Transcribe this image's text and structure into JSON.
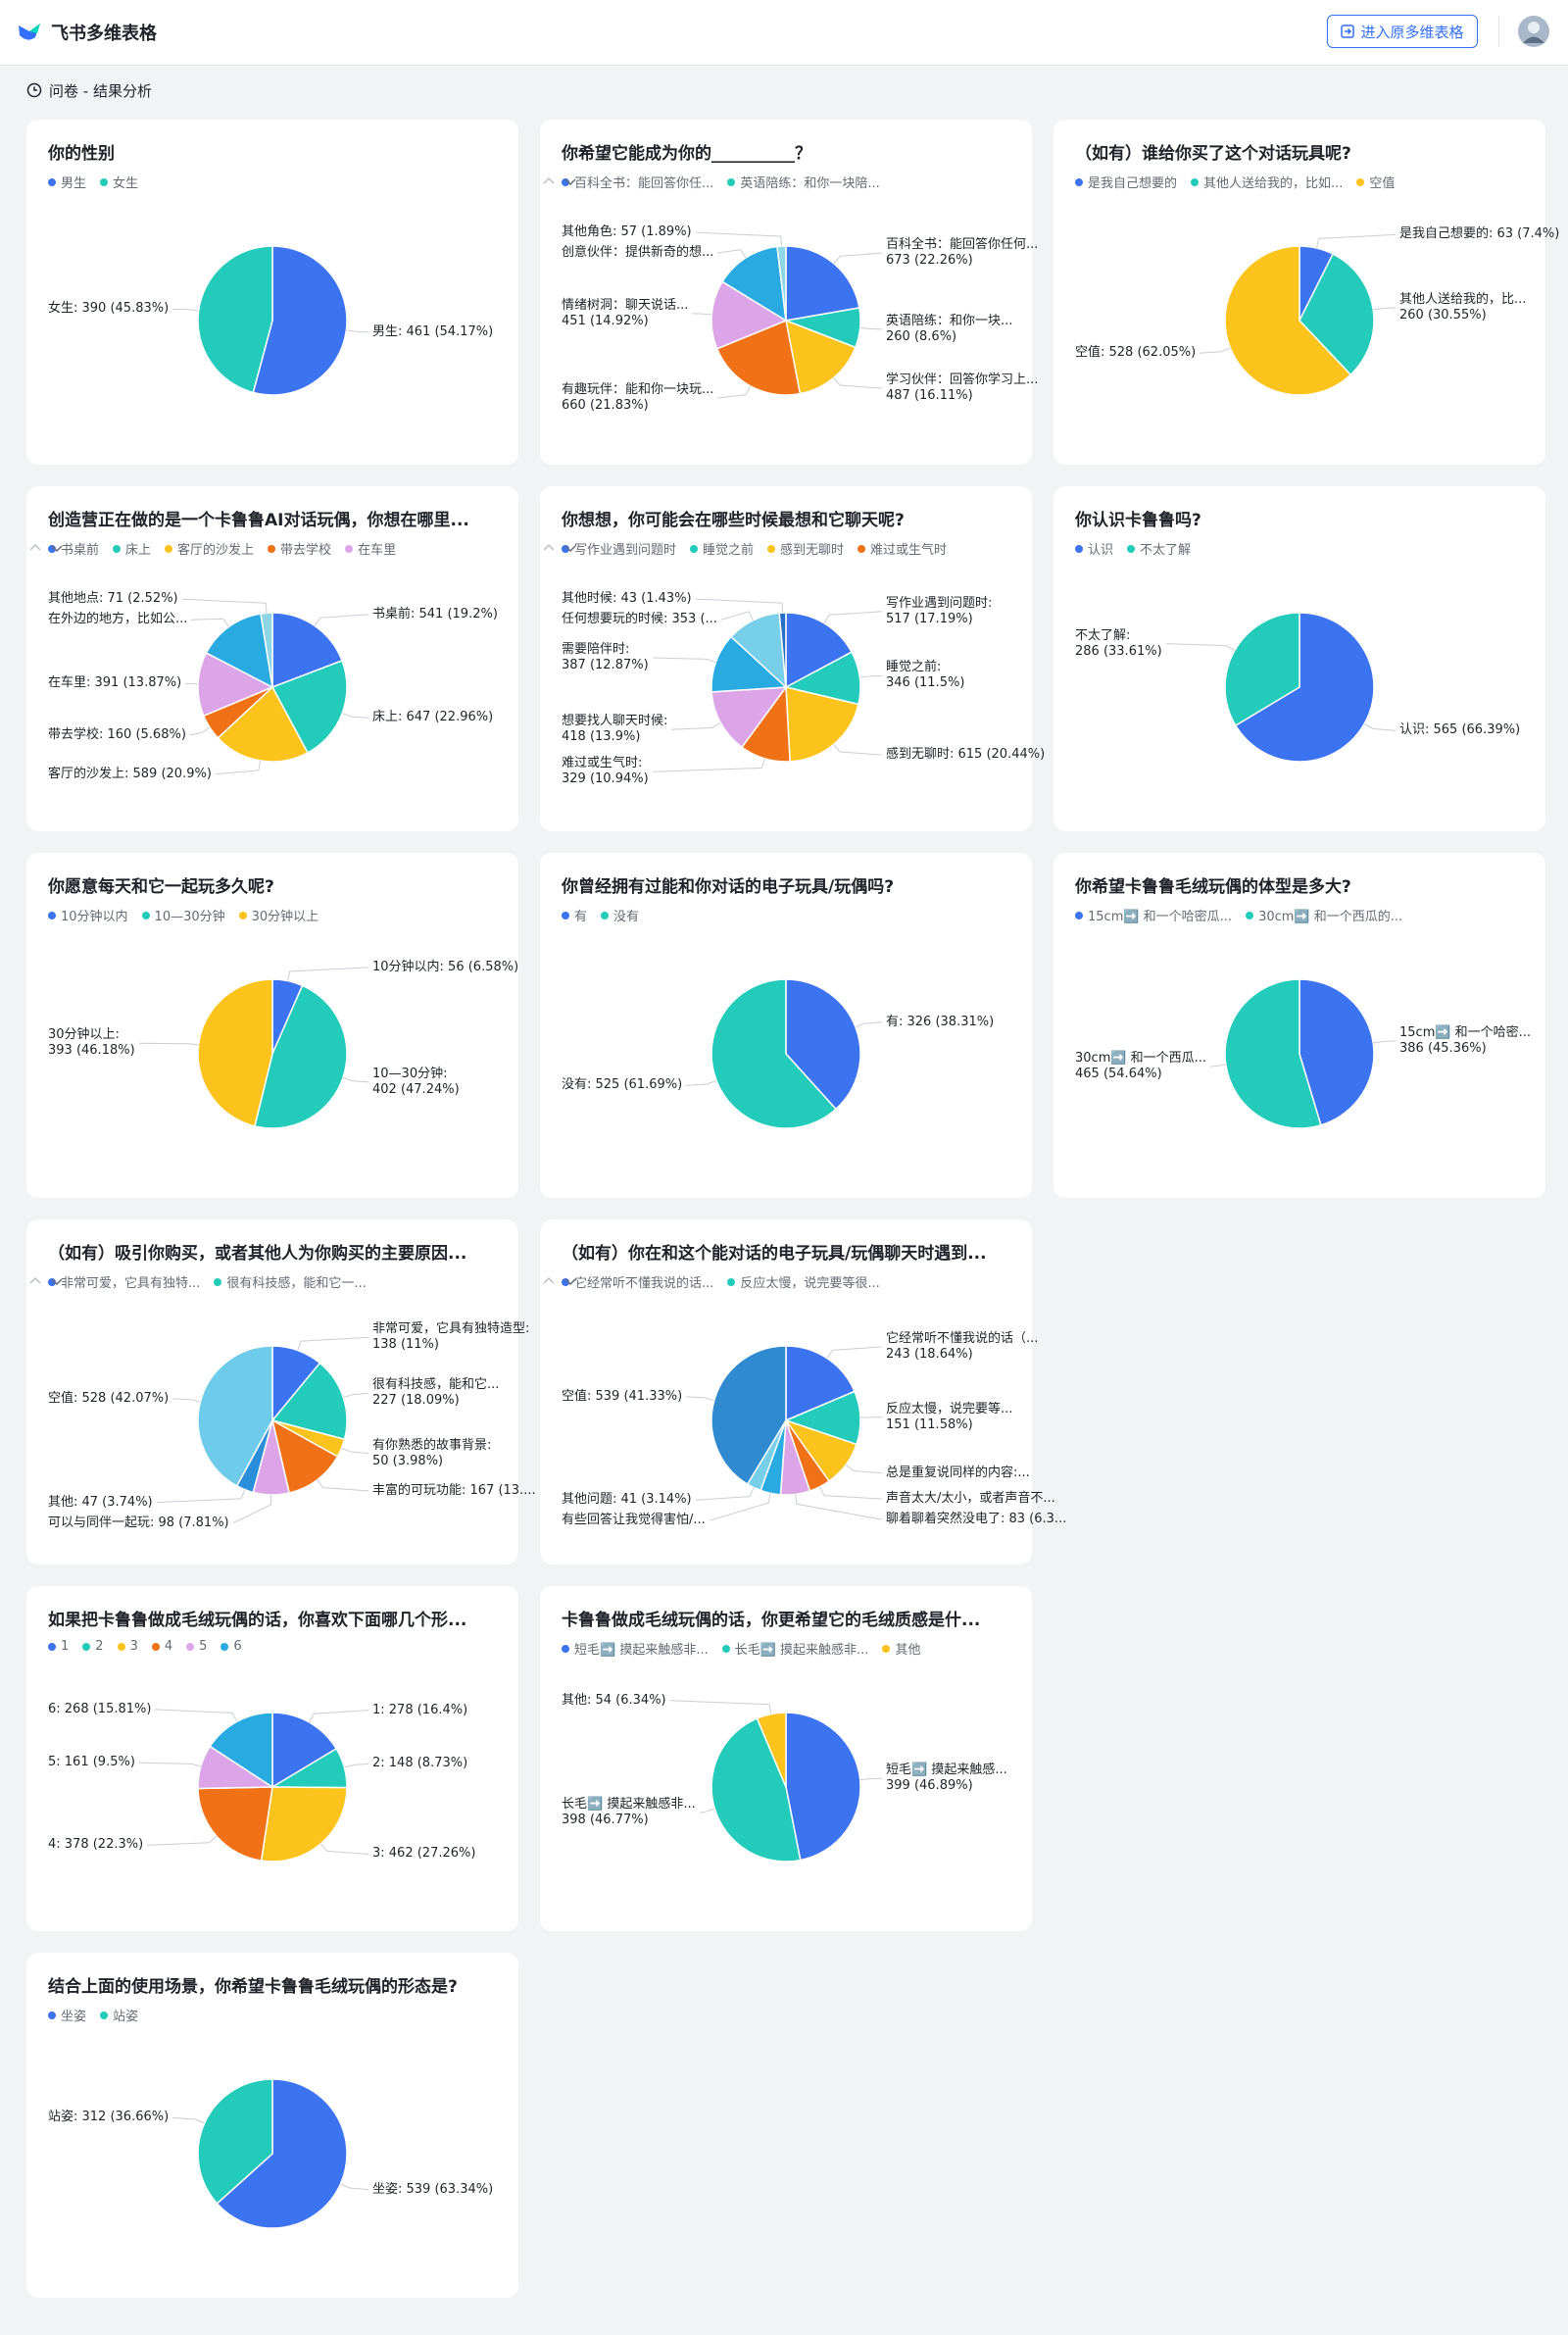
{
  "header": {
    "app_name": "飞书多维表格",
    "button": "进入原多维表格",
    "breadcrumb": "问卷 - 结果分析"
  },
  "chart_data": [
    {
      "type": "pie",
      "title": "你的性别",
      "categories": [
        "男生",
        "女生"
      ],
      "values": [
        461,
        390
      ],
      "value_labels": [
        "男生: 461 (54.17%)",
        "女生: 390 (45.83%)"
      ],
      "colors": [
        "#3b73f0",
        "#23cbbb"
      ]
    },
    {
      "type": "pie",
      "title": "你希望它能成为你的__________？",
      "categories": [
        "百科全书：能回答你任...",
        "英语陪练：和你一块陪...",
        null,
        null,
        null,
        null,
        null
      ],
      "values": [
        673,
        260,
        487,
        660,
        451,
        435,
        57
      ],
      "value_labels": [
        "百科全书：能回答你任何...\n673 (22.26%)",
        "英语陪练：和你一块...\n260 (8.6%)",
        "学习伙伴：回答你学习上...\n487 (16.11%)",
        "有趣玩伴：能和你一块玩...\n660 (21.83%)",
        "情绪树洞：聊天说话...\n451 (14.92%)",
        "创意伙伴：提供新奇的想...",
        "其他角色: 57 (1.89%)"
      ],
      "colors": [
        "#3b73f0",
        "#23cbbb",
        "#fbc31c",
        "#f07116",
        "#dca5e8",
        "#29abe2",
        "#8fd6e4"
      ]
    },
    {
      "type": "pie",
      "title": "（如有）谁给你买了这个对话玩具呢?",
      "categories": [
        "是我自己想要的",
        "其他人送给我的，比如...",
        "空值"
      ],
      "values": [
        63,
        260,
        528
      ],
      "value_labels": [
        "是我自己想要的: 63 (7.4%)",
        "其他人送给我的，比...\n260 (30.55%)",
        "空值: 528 (62.05%)"
      ],
      "colors": [
        "#3b73f0",
        "#23cbbb",
        "#fbc31c"
      ]
    },
    {
      "type": "pie",
      "title": "创造营正在做的是一个卡鲁鲁AI对话玩偶，你想在哪里...",
      "categories": [
        "书桌前",
        "床上",
        "客厅的沙发上",
        "带去学校",
        "在车里",
        null,
        null
      ],
      "values": [
        541,
        647,
        589,
        160,
        391,
        419,
        71
      ],
      "value_labels": [
        "书桌前: 541 (19.2%)",
        "床上: 647 (22.96%)",
        "客厅的沙发上: 589 (20.9%)",
        "带去学校: 160 (5.68%)",
        "在车里: 391 (13.87%)",
        "在外边的地方，比如公...",
        "其他地点: 71 (2.52%)"
      ],
      "colors": [
        "#3b73f0",
        "#23cbbb",
        "#fbc31c",
        "#f07116",
        "#dca5e8",
        "#29abe2",
        "#8fd6e4"
      ]
    },
    {
      "type": "pie",
      "title": "你想想，你可能会在哪些时候最想和它聊天呢?",
      "categories": [
        "写作业遇到问题时",
        "睡觉之前",
        "感到无聊时",
        "难过或生气时",
        null,
        null,
        null,
        null
      ],
      "values": [
        517,
        346,
        615,
        329,
        418,
        387,
        353,
        43
      ],
      "value_labels": [
        "写作业遇到问题时:\n517 (17.19%)",
        "睡觉之前:\n346 (11.5%)",
        "感到无聊时: 615 (20.44%)",
        "难过或生气时:\n329 (10.94%)",
        "想要找人聊天时候:\n418 (13.9%)",
        "需要陪伴时:\n387 (12.87%)",
        "任何想要玩的时候: 353 (...",
        "其他时候: 43 (1.43%)"
      ],
      "colors": [
        "#3b73f0",
        "#23cbbb",
        "#fbc31c",
        "#f07116",
        "#dca5e8",
        "#29abe2",
        "#77cfea",
        "#2a6fc9"
      ]
    },
    {
      "type": "pie",
      "title": "你认识卡鲁鲁吗?",
      "categories": [
        "认识",
        "不太了解"
      ],
      "values": [
        565,
        286
      ],
      "value_labels": [
        "认识: 565 (66.39%)",
        "不太了解:\n286 (33.61%)"
      ],
      "colors": [
        "#3b73f0",
        "#23cbbb"
      ]
    },
    {
      "type": "pie",
      "title": "你愿意每天和它一起玩多久呢?",
      "categories": [
        "10分钟以内",
        "10—30分钟",
        "30分钟以上"
      ],
      "values": [
        56,
        402,
        393
      ],
      "value_labels": [
        "10分钟以内: 56 (6.58%)",
        "10—30分钟:\n402 (47.24%)",
        "30分钟以上:\n393 (46.18%)"
      ],
      "colors": [
        "#3b73f0",
        "#23cbbb",
        "#fbc31c"
      ]
    },
    {
      "type": "pie",
      "title": "你曾经拥有过能和你对话的电子玩具/玩偶吗?",
      "categories": [
        "有",
        "没有"
      ],
      "values": [
        326,
        525
      ],
      "value_labels": [
        "有: 326 (38.31%)",
        "没有: 525 (61.69%)"
      ],
      "colors": [
        "#3b73f0",
        "#23cbbb"
      ]
    },
    {
      "type": "pie",
      "title": "你希望卡鲁鲁毛绒玩偶的体型是多大?",
      "categories": [
        "15cm➡️ 和一个哈密瓜...",
        "30cm➡️ 和一个西瓜的..."
      ],
      "values": [
        386,
        465
      ],
      "value_labels": [
        "15cm➡️ 和一个哈密...\n386 (45.36%)",
        "30cm➡️ 和一个西瓜...\n465 (54.64%)"
      ],
      "colors": [
        "#3b73f0",
        "#23cbbb"
      ]
    },
    {
      "type": "pie",
      "title": "（如有）吸引你购买，或者其他人为你购买的主要原因...",
      "categories": [
        "非常可爱，它具有独特...",
        "很有科技感，能和它一...",
        null,
        null,
        null,
        null,
        null
      ],
      "values": [
        138,
        227,
        50,
        167,
        98,
        47,
        528
      ],
      "value_labels": [
        "非常可爱，它具有独特造型:\n138 (11%)",
        "很有科技感，能和它...\n227 (18.09%)",
        "有你熟悉的故事背景:\n50 (3.98%)",
        "丰富的可玩功能: 167 (13....",
        "可以与同伴一起玩: 98 (7.81%)",
        "其他: 47 (3.74%)",
        "空值: 528 (42.07%)"
      ],
      "colors": [
        "#3b73f0",
        "#23cbbb",
        "#fbc31c",
        "#f07116",
        "#dca5e8",
        "#2a8fd8",
        "#6ecbea"
      ]
    },
    {
      "type": "pie",
      "title": "（如有）你在和这个能对话的电子玩具/玩偶聊天时遇到...",
      "categories": [
        "它经常听不懂我说的话...",
        "反应太慢，说完要等很...",
        null,
        null,
        null,
        null,
        null,
        null
      ],
      "values": [
        243,
        151,
        130,
        60,
        83,
        57,
        41,
        539
      ],
      "value_labels": [
        "它经常听不懂我说的话（...\n243 (18.64%)",
        "反应太慢，说完要等...\n151 (11.58%)",
        "总是重复说同样的内容:...",
        "声音太大/太小，或者声音不...",
        "聊着聊着突然没电了: 83 (6.3...",
        "有些回答让我觉得害怕/...",
        "其他问题: 41 (3.14%)",
        "空值: 539 (41.33%)"
      ],
      "colors": [
        "#3b73f0",
        "#23cbbb",
        "#fbc31c",
        "#f07116",
        "#dca5e8",
        "#29abe2",
        "#77cfea",
        "#2f8ad0"
      ]
    },
    {
      "type": "pie",
      "title": "如果把卡鲁鲁做成毛绒玩偶的话，你喜欢下面哪几个形...",
      "categories": [
        "1",
        "2",
        "3",
        "4",
        "5",
        "6"
      ],
      "values": [
        278,
        148,
        462,
        378,
        161,
        268
      ],
      "value_labels": [
        "1: 278 (16.4%)",
        "2: 148 (8.73%)",
        "3: 462 (27.26%)",
        "4: 378 (22.3%)",
        "5: 161 (9.5%)",
        "6: 268 (15.81%)"
      ],
      "colors": [
        "#3b73f0",
        "#23cbbb",
        "#fbc31c",
        "#f07116",
        "#dca5e8",
        "#29abe2"
      ]
    },
    {
      "type": "pie",
      "title": "卡鲁鲁做成毛绒玩偶的话，你更希望它的毛绒质感是什...",
      "categories": [
        "短毛➡️ 摸起来触感非...",
        "长毛➡️ 摸起来触感非...",
        "其他"
      ],
      "values": [
        399,
        398,
        54
      ],
      "value_labels": [
        "短毛➡️ 摸起来触感...\n399 (46.89%)",
        "长毛➡️ 摸起来触感非...\n398 (46.77%)",
        "其他: 54 (6.34%)"
      ],
      "colors": [
        "#3b73f0",
        "#23cbbb",
        "#fbc31c"
      ]
    },
    {
      "type": "pie",
      "title": "结合上面的使用场景，你希望卡鲁鲁毛绒玩偶的形态是?",
      "categories": [
        "坐姿",
        "站姿"
      ],
      "values": [
        539,
        312
      ],
      "value_labels": [
        "坐姿: 539 (63.34%)",
        "站姿: 312 (36.66%)"
      ],
      "colors": [
        "#3b73f0",
        "#23cbbb"
      ]
    }
  ]
}
